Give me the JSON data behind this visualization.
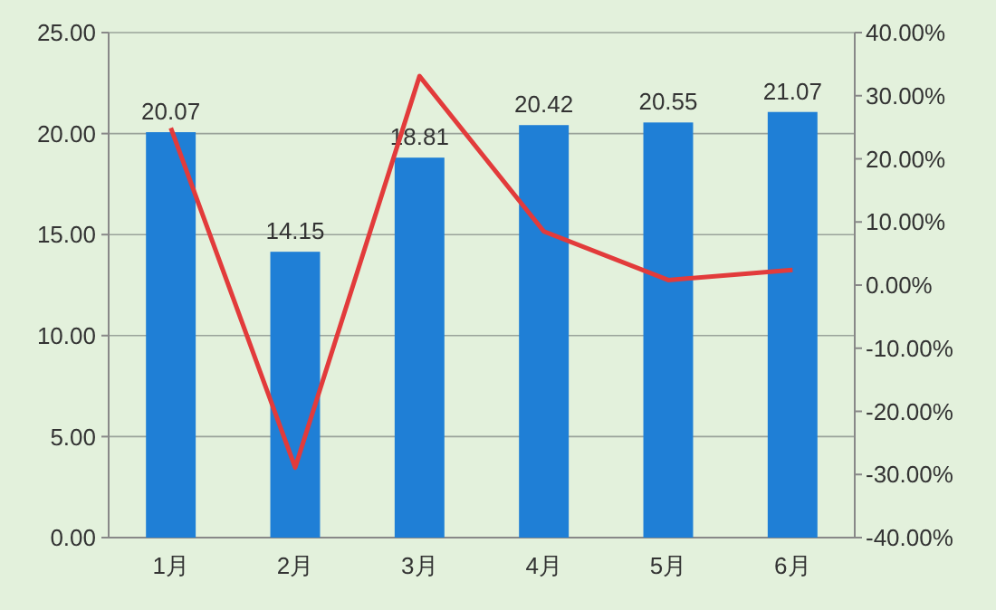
{
  "chart_data": {
    "type": "bar",
    "categories": [
      "1月",
      "2月",
      "3月",
      "4月",
      "5月",
      "6月"
    ],
    "series": [
      {
        "color": "#1f7fd6",
        "values": [
          20.07,
          14.15,
          18.81,
          20.42,
          20.55,
          21.07
        ],
        "value_labels": [
          "20.07",
          "14.15",
          "18.81",
          "20.42",
          "20.55",
          "21.07"
        ]
      },
      {
        "type": "line",
        "axis": "y2",
        "color": "#e23b3b",
        "values": [
          24.9,
          -28.9,
          33.1,
          8.5,
          0.8,
          2.4
        ]
      }
    ],
    "ylim": [
      0,
      25
    ],
    "yticks": [
      {
        "value": 0,
        "label": "0.00"
      },
      {
        "value": 5,
        "label": "5.00"
      },
      {
        "value": 10,
        "label": "10.00"
      },
      {
        "value": 15,
        "label": "15.00"
      },
      {
        "value": 20,
        "label": "20.00"
      },
      {
        "value": 25,
        "label": "25.00"
      }
    ],
    "y2lim": [
      -40,
      40
    ],
    "y2ticks": [
      {
        "value": -40,
        "label": "-40.00%"
      },
      {
        "value": -30,
        "label": "-30.00%"
      },
      {
        "value": -20,
        "label": "-20.00%"
      },
      {
        "value": -10,
        "label": "-10.00%"
      },
      {
        "value": 0,
        "label": "0.00%"
      },
      {
        "value": 10,
        "label": "10.00%"
      },
      {
        "value": 20,
        "label": "20.00%"
      },
      {
        "value": 30,
        "label": "30.00%"
      },
      {
        "value": 40,
        "label": "40.00%"
      }
    ],
    "grid": "y"
  }
}
